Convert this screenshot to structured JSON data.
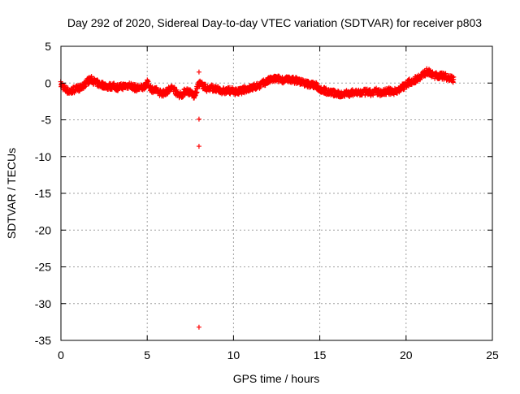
{
  "chart_data": {
    "type": "scatter",
    "title": "Day 292 of 2020, Sidereal Day-to-day VTEC variation (SDTVAR) for receiver p803",
    "xlabel": "GPS time / hours",
    "ylabel": "SDTVAR / TECUs",
    "xlim": [
      0,
      25
    ],
    "ylim": [
      -35,
      5
    ],
    "x_ticks": [
      0,
      5,
      10,
      15,
      20,
      25
    ],
    "y_ticks": [
      5,
      0,
      -5,
      -10,
      -15,
      -20,
      -25,
      -30,
      -35
    ],
    "grid": true,
    "marker": "+",
    "colors": {
      "series": "#ff0000",
      "axis": "#000000",
      "grid": "#a0a0a0"
    },
    "outliers": [
      {
        "x": 8.0,
        "y": 1.5
      },
      {
        "x": 8.0,
        "y": -4.9
      },
      {
        "x": 8.0,
        "y": -8.6
      },
      {
        "x": 8.0,
        "y": -33.2
      }
    ],
    "series": [
      {
        "name": "SDTVAR",
        "x": [
          0.0,
          0.25,
          0.5,
          0.75,
          1.0,
          1.25,
          1.5,
          1.75,
          2.0,
          2.25,
          2.5,
          2.75,
          3.0,
          3.25,
          3.5,
          3.75,
          4.0,
          4.25,
          4.5,
          4.75,
          5.0,
          5.25,
          5.5,
          5.75,
          6.0,
          6.25,
          6.5,
          6.75,
          7.0,
          7.25,
          7.5,
          7.75,
          8.0,
          8.25,
          8.5,
          8.75,
          9.0,
          9.25,
          9.5,
          9.75,
          10.0,
          10.25,
          10.5,
          10.75,
          11.0,
          11.25,
          11.5,
          11.75,
          12.0,
          12.25,
          12.5,
          12.75,
          13.0,
          13.25,
          13.5,
          13.75,
          14.0,
          14.25,
          14.5,
          14.75,
          15.0,
          15.25,
          15.5,
          15.75,
          16.0,
          16.25,
          16.5,
          16.75,
          17.0,
          17.25,
          17.5,
          17.75,
          18.0,
          18.25,
          18.5,
          18.75,
          19.0,
          19.25,
          19.5,
          19.75,
          20.0,
          20.25,
          20.5,
          20.75,
          21.0,
          21.25,
          21.5,
          21.75,
          22.0,
          22.25,
          22.5,
          22.75
        ],
        "y": [
          -0.2,
          -0.8,
          -1.2,
          -0.9,
          -0.7,
          -0.6,
          0.2,
          0.5,
          0.1,
          -0.2,
          -0.3,
          -0.5,
          -0.4,
          -0.6,
          -0.5,
          -0.4,
          -0.3,
          -0.6,
          -0.7,
          -0.6,
          0.0,
          -0.8,
          -1.0,
          -1.3,
          -1.4,
          -0.9,
          -0.6,
          -1.5,
          -1.6,
          -1.0,
          -1.3,
          -1.8,
          0.0,
          -0.4,
          -0.8,
          -0.6,
          -0.9,
          -1.0,
          -1.1,
          -1.0,
          -1.1,
          -1.2,
          -1.0,
          -0.8,
          -0.7,
          -0.5,
          -0.3,
          0.0,
          0.3,
          0.5,
          0.6,
          0.5,
          0.4,
          0.5,
          0.4,
          0.3,
          0.1,
          -0.1,
          -0.2,
          -0.3,
          -0.8,
          -1.0,
          -1.2,
          -1.3,
          -1.5,
          -1.6,
          -1.3,
          -1.5,
          -1.2,
          -1.4,
          -1.3,
          -1.2,
          -1.4,
          -1.1,
          -1.3,
          -1.2,
          -1.1,
          -1.2,
          -1.0,
          -0.6,
          -0.2,
          0.2,
          0.4,
          0.8,
          1.2,
          1.6,
          1.1,
          1.0,
          1.0,
          0.9,
          0.7,
          0.5
        ]
      }
    ]
  }
}
